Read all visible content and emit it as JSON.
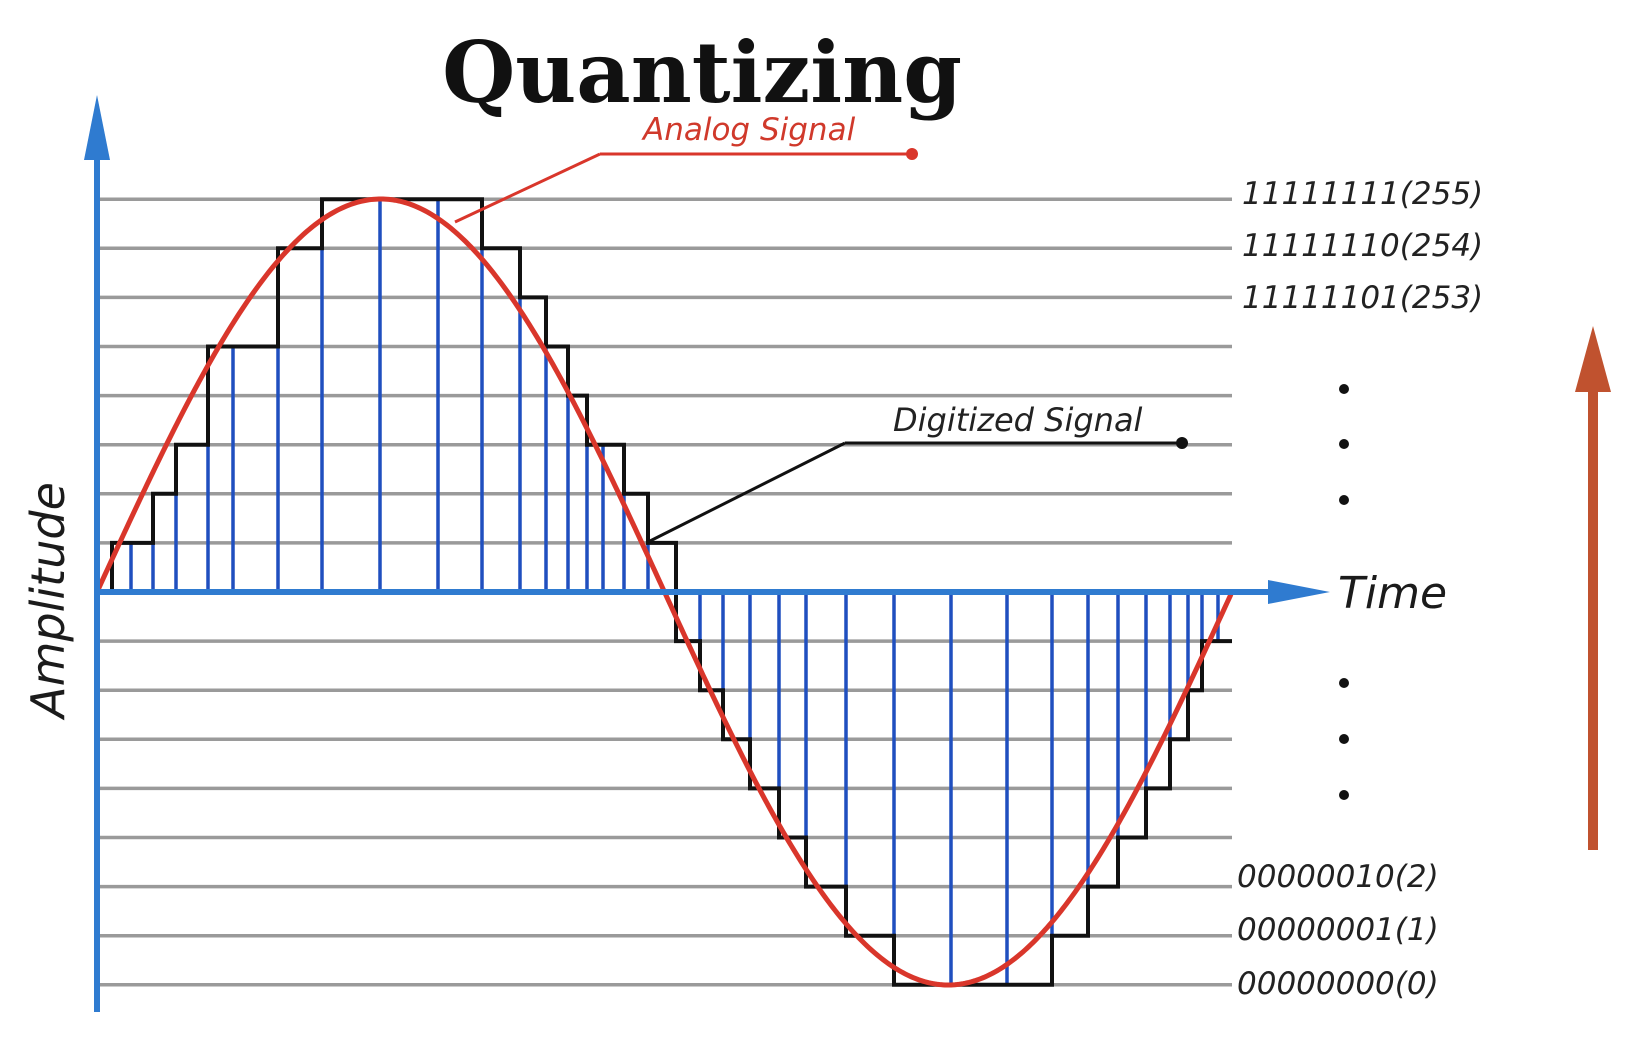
{
  "title": "Quantizing",
  "labels": {
    "analog_signal": "Analog Signal",
    "digitized_signal": "Digitized Signal",
    "x_axis": "Time",
    "y_axis": "Amplitude"
  },
  "level_codes_top": [
    "11111111(255)",
    "11111110(254)",
    "11111101(253)"
  ],
  "level_codes_bottom": [
    "00000010(2)",
    "00000001(1)",
    "00000000(0)"
  ],
  "ellipsis_dot": "•",
  "colors": {
    "analog": "#d9362b",
    "digitized": "#111111",
    "samples": "#1f4fbf",
    "axes": "#2f7bd0",
    "grid": "#9a9a9a",
    "side_arrow": "#c0522f"
  },
  "icons": {
    "y_axis_arrow": "arrow-up-icon",
    "x_axis_arrow": "arrow-right-icon",
    "side_arrow": "arrow-up-icon"
  }
}
